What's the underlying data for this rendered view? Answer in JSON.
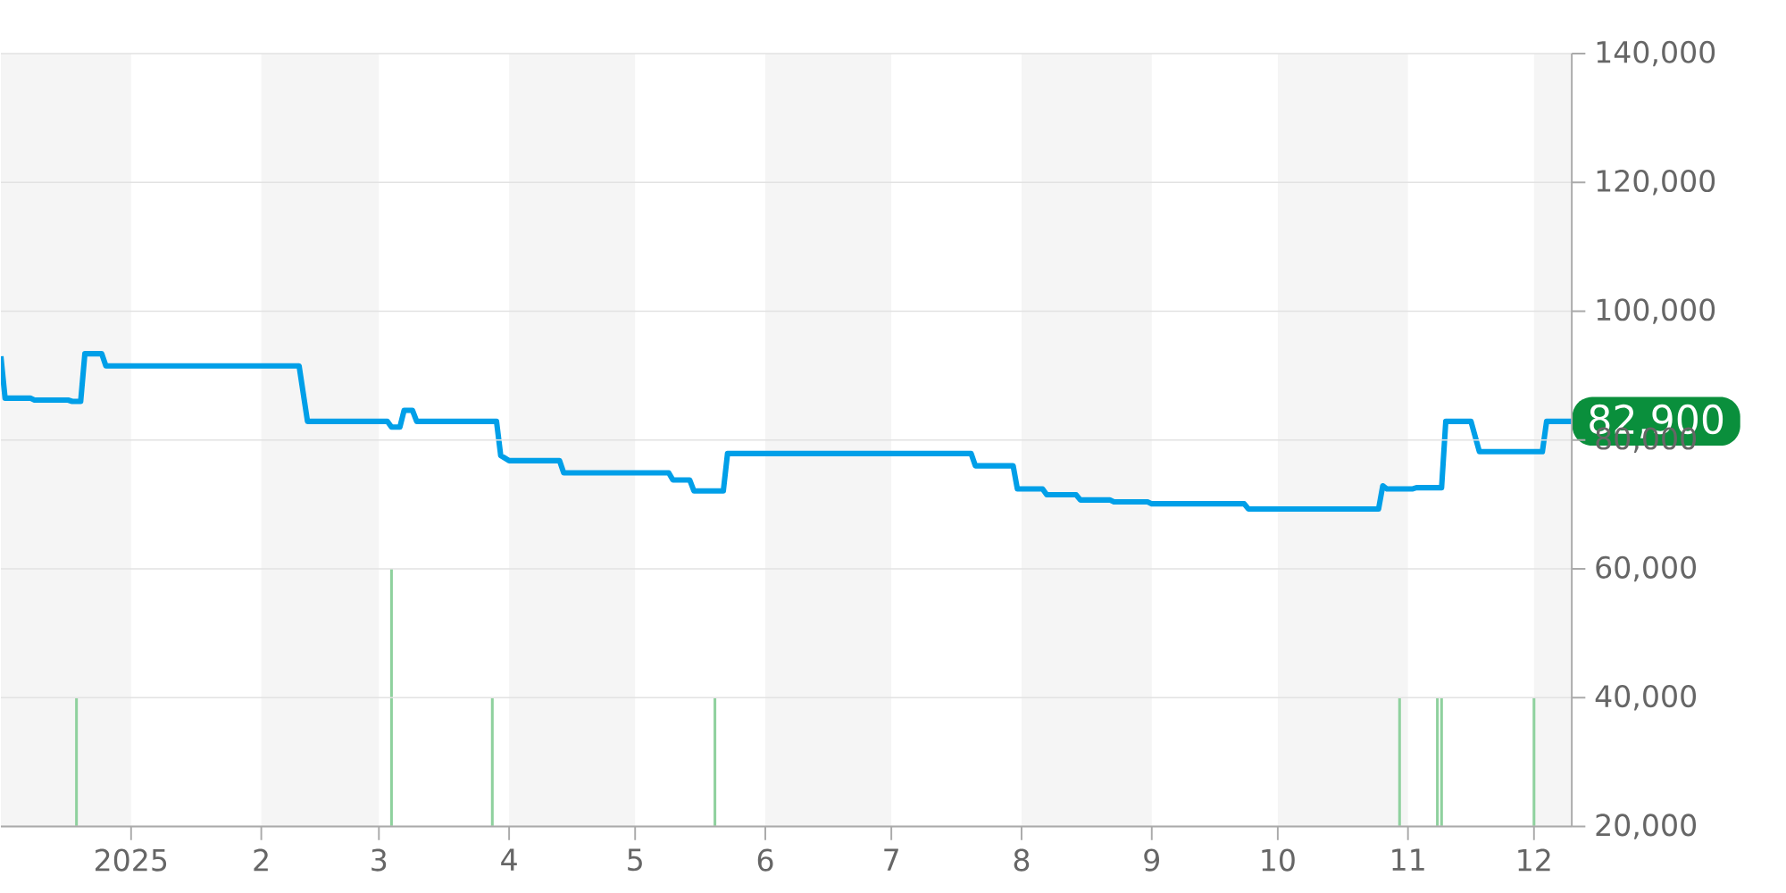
{
  "chart_data": {
    "type": "line",
    "xlim": [
      "2024-12-01",
      "2025-12-10"
    ],
    "ylim": [
      20000,
      140000
    ],
    "xticks": [
      {
        "value": "2025-01-01",
        "label": "2025"
      },
      {
        "value": "2025-02-01",
        "label": "2"
      },
      {
        "value": "2025-03-01",
        "label": "3"
      },
      {
        "value": "2025-04-01",
        "label": "4"
      },
      {
        "value": "2025-05-01",
        "label": "5"
      },
      {
        "value": "2025-06-01",
        "label": "6"
      },
      {
        "value": "2025-07-01",
        "label": "7"
      },
      {
        "value": "2025-08-01",
        "label": "8"
      },
      {
        "value": "2025-09-01",
        "label": "9"
      },
      {
        "value": "2025-10-01",
        "label": "10"
      },
      {
        "value": "2025-11-01",
        "label": "11"
      },
      {
        "value": "2025-12-01",
        "label": "12"
      }
    ],
    "yticks": [
      {
        "value": 20000,
        "label": "20,000"
      },
      {
        "value": 40000,
        "label": "40,000"
      },
      {
        "value": 60000,
        "label": "60,000"
      },
      {
        "value": 80000,
        "label": "80,000"
      },
      {
        "value": 100000,
        "label": "100,000"
      },
      {
        "value": 120000,
        "label": "120,000"
      },
      {
        "value": 140000,
        "label": "140,000"
      }
    ],
    "grid": "y",
    "bands": [
      {
        "axis": "x",
        "from": "2024-12-01",
        "to": "2025-01-01",
        "color": "#f5f5f5"
      },
      {
        "axis": "x",
        "from": "2025-02-01",
        "to": "2025-03-01",
        "color": "#f5f5f5"
      },
      {
        "axis": "x",
        "from": "2025-04-01",
        "to": "2025-05-01",
        "color": "#f5f5f5"
      },
      {
        "axis": "x",
        "from": "2025-06-01",
        "to": "2025-07-01",
        "color": "#f5f5f5"
      },
      {
        "axis": "x",
        "from": "2025-08-01",
        "to": "2025-09-01",
        "color": "#f5f5f5"
      },
      {
        "axis": "x",
        "from": "2025-10-01",
        "to": "2025-11-01",
        "color": "#f5f5f5"
      },
      {
        "axis": "x",
        "from": "2025-12-01",
        "to": "2025-12-10",
        "color": "#f5f5f5"
      }
    ],
    "series": [
      {
        "type": "bar",
        "color": "#8fd19e",
        "x": [
          "2024-12-19",
          "2025-03-04",
          "2025-03-28",
          "2025-05-20",
          "2025-10-30",
          "2025-11-08",
          "2025-11-09",
          "2025-12-01"
        ],
        "values": [
          40000,
          60000,
          40000,
          40000,
          40000,
          40000,
          40000,
          40000
        ]
      },
      {
        "color": "#009fe8",
        "x": [
          "2024-12-01",
          "2024-12-02",
          "2024-12-08",
          "2024-12-09",
          "2024-12-17",
          "2024-12-18",
          "2024-12-20",
          "2024-12-21",
          "2024-12-25",
          "2024-12-26",
          "2025-02-10",
          "2025-02-12",
          "2025-03-03",
          "2025-03-04",
          "2025-03-06",
          "2025-03-07",
          "2025-03-09",
          "2025-03-10",
          "2025-03-29",
          "2025-03-30",
          "2025-04-01",
          "2025-04-13",
          "2025-04-14",
          "2025-05-09",
          "2025-05-10",
          "2025-05-14",
          "2025-05-15",
          "2025-05-22",
          "2025-05-23",
          "2025-07-20",
          "2025-07-21",
          "2025-07-30",
          "2025-07-31",
          "2025-08-06",
          "2025-08-07",
          "2025-08-14",
          "2025-08-15",
          "2025-08-22",
          "2025-08-23",
          "2025-08-31",
          "2025-09-01",
          "2025-09-23",
          "2025-09-24",
          "2025-10-25",
          "2025-10-26",
          "2025-10-27",
          "2025-11-02",
          "2025-11-03",
          "2025-11-09",
          "2025-11-10",
          "2025-11-16",
          "2025-11-18",
          "2025-12-03",
          "2025-12-04",
          "2025-12-10"
        ],
        "values": [
          93000,
          86500,
          86500,
          86200,
          86200,
          86000,
          86000,
          93400,
          93400,
          91500,
          91500,
          82900,
          82900,
          82000,
          82000,
          84600,
          84600,
          82900,
          82900,
          77600,
          76800,
          76800,
          74900,
          74900,
          73800,
          73800,
          72100,
          72100,
          77900,
          77900,
          76000,
          76000,
          72400,
          72400,
          71500,
          71500,
          70700,
          70700,
          70400,
          70400,
          70100,
          70100,
          69300,
          69300,
          72900,
          72400,
          72400,
          72600,
          72600,
          82900,
          82900,
          78200,
          78200,
          82900,
          82900
        ]
      }
    ],
    "annotations": [
      {
        "text": "82,900",
        "x": "2025-12-10",
        "y": 82900
      }
    ]
  }
}
